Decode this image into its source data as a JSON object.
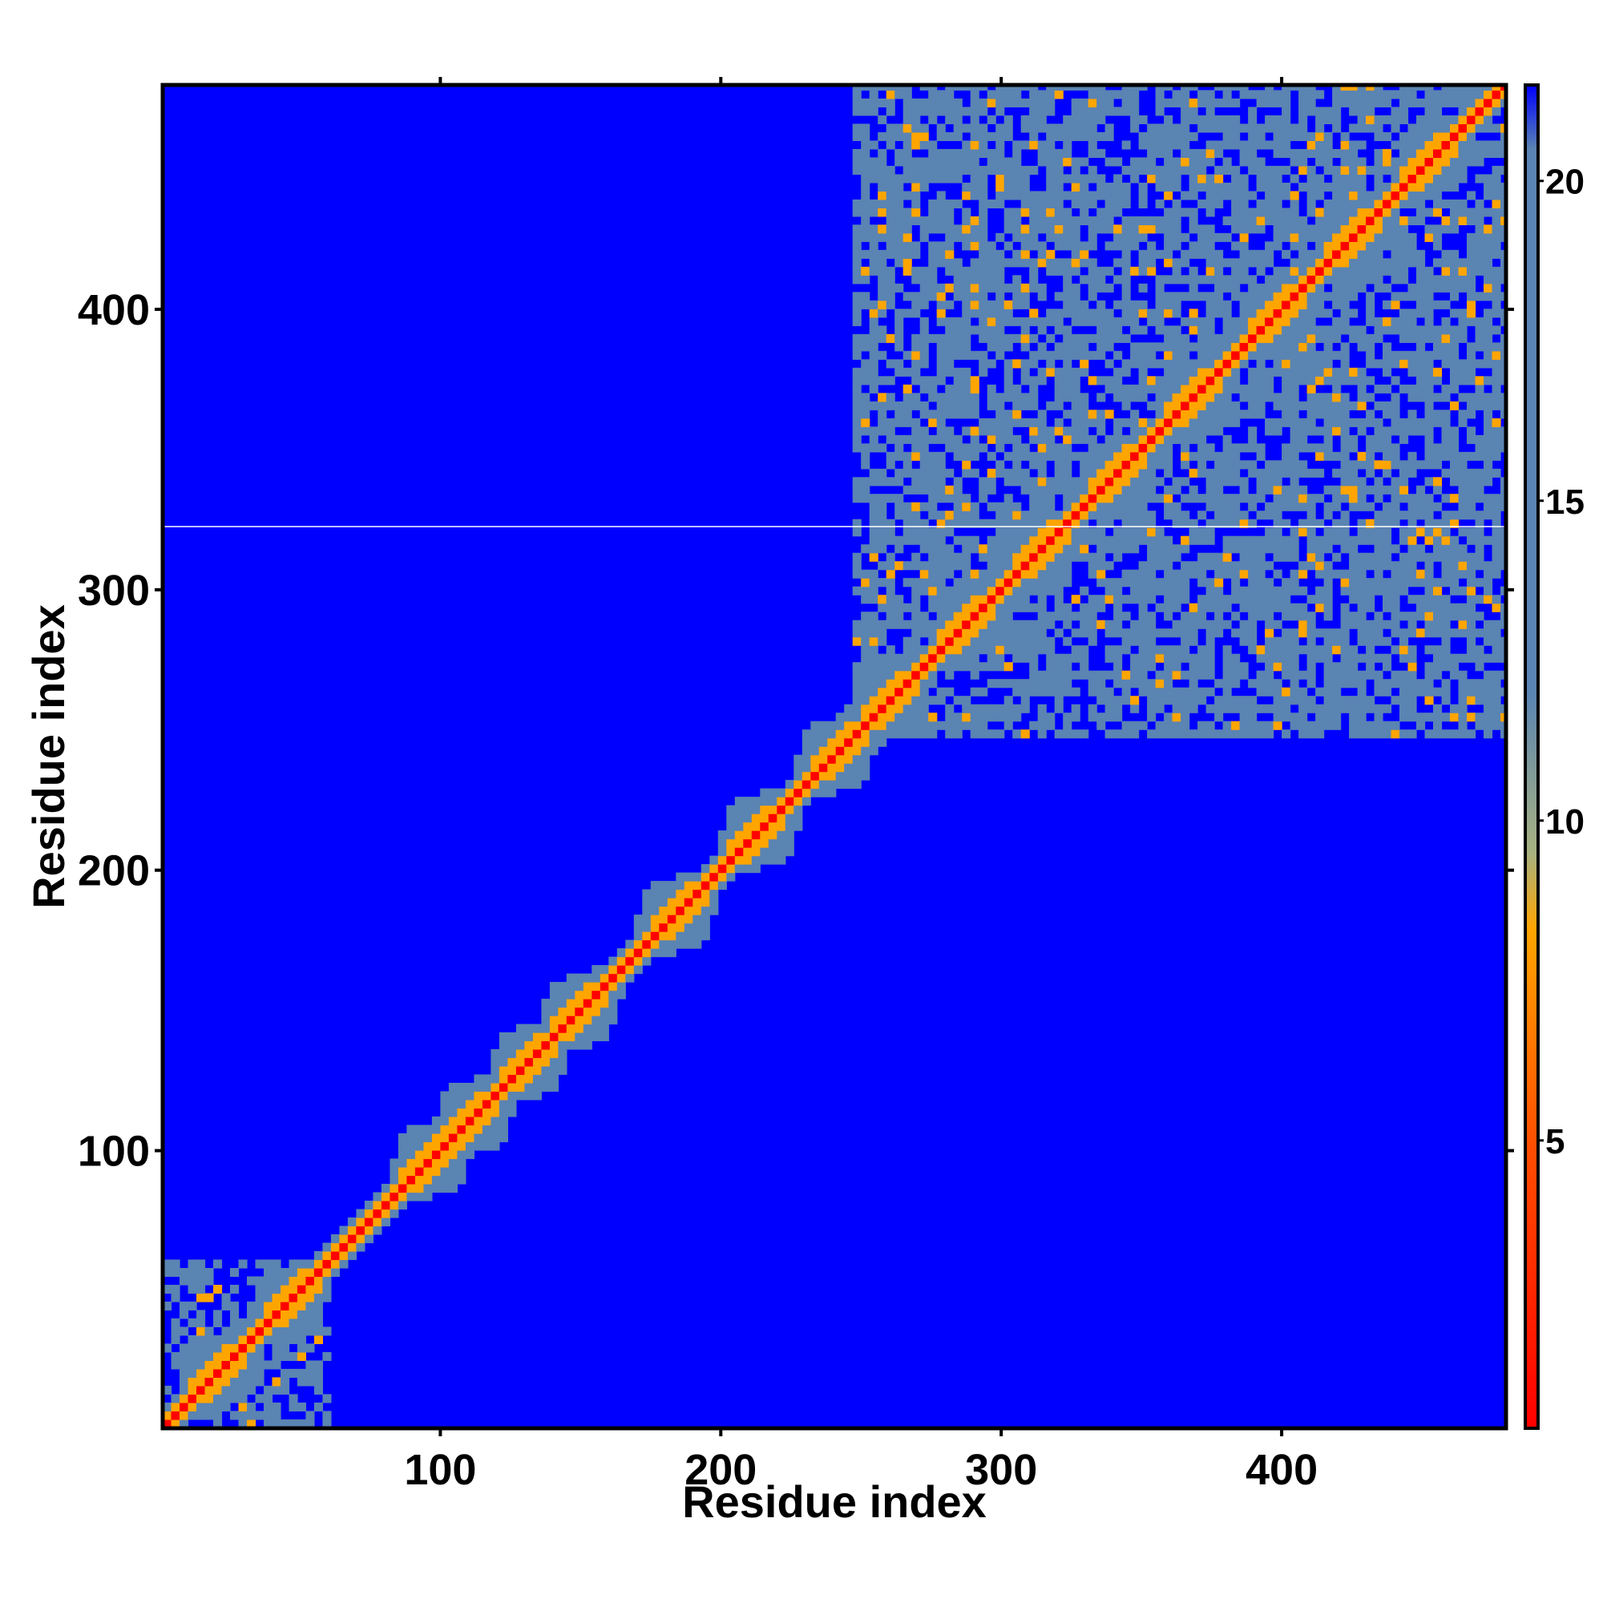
{
  "chart_data": {
    "type": "heatmap",
    "title": "",
    "xlabel": "Residue index",
    "ylabel": "Residue index",
    "xlim": [
      1,
      480
    ],
    "ylim": [
      1,
      480
    ],
    "x_ticks": [
      100,
      200,
      300,
      400
    ],
    "y_ticks": [
      100,
      200,
      300,
      400
    ],
    "colorbar": {
      "range": [
        0.5,
        21.5
      ],
      "ticks": [
        5,
        10,
        15,
        20
      ],
      "stops": [
        {
          "value": 0.5,
          "color": "#ff0000"
        },
        {
          "value": 5,
          "color": "#ff5000"
        },
        {
          "value": 8.3,
          "color": "#ffa500"
        },
        {
          "value": 9.5,
          "color": "#a7b280"
        },
        {
          "value": 12,
          "color": "#5a84b2"
        },
        {
          "value": 20.5,
          "color": "#5a84b2"
        },
        {
          "value": 21.5,
          "color": "#0000ff"
        }
      ]
    },
    "background_value": 21.5,
    "background_color": "#0000ff",
    "mid_color": "#5a84b2",
    "near_color": "#ffa500",
    "diagonal_color": "#ff0000",
    "domains": [
      {
        "start": 1,
        "end": 60
      },
      {
        "start": 245,
        "end": 480
      }
    ],
    "diagonal_bulges": [
      20,
      45,
      95,
      110,
      130,
      148,
      183,
      212,
      240,
      258,
      287,
      312,
      340,
      368,
      396,
      424,
      452
    ]
  }
}
